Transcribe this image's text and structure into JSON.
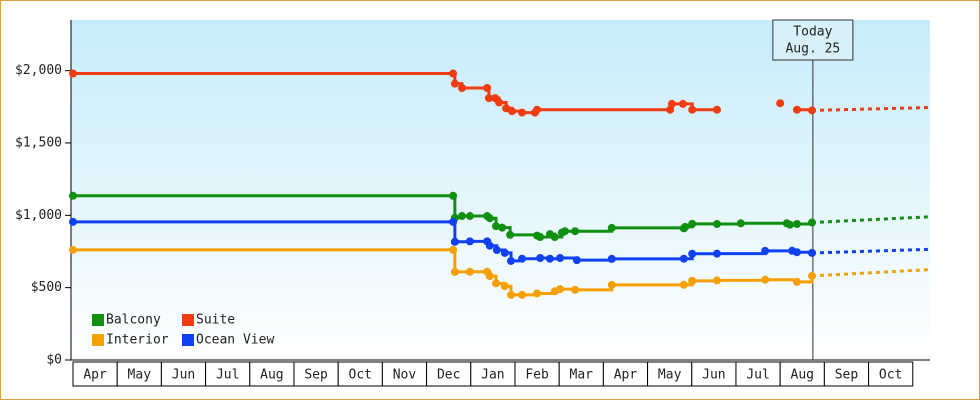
{
  "chart_data": {
    "type": "step-line",
    "xlim": [
      0,
      19.39
    ],
    "ylim": [
      0,
      2350
    ],
    "yticks": [
      {
        "value": 0,
        "label": "$0"
      },
      {
        "value": 500,
        "label": "$500"
      },
      {
        "value": 1000,
        "label": "$1,000"
      },
      {
        "value": 1500,
        "label": "$1,500"
      },
      {
        "value": 2000,
        "label": "$2,000"
      }
    ],
    "xticks": [
      {
        "value": 0.5,
        "label": "Apr"
      },
      {
        "value": 1.5,
        "label": "May"
      },
      {
        "value": 2.5,
        "label": "Jun"
      },
      {
        "value": 3.5,
        "label": "Jul"
      },
      {
        "value": 4.5,
        "label": "Aug"
      },
      {
        "value": 5.5,
        "label": "Sep"
      },
      {
        "value": 6.5,
        "label": "Oct"
      },
      {
        "value": 7.5,
        "label": "Nov"
      },
      {
        "value": 8.5,
        "label": "Dec"
      },
      {
        "value": 9.5,
        "label": "Jan"
      },
      {
        "value": 10.5,
        "label": "Feb"
      },
      {
        "value": 11.5,
        "label": "Mar"
      },
      {
        "value": 12.5,
        "label": "Apr"
      },
      {
        "value": 13.5,
        "label": "May"
      },
      {
        "value": 14.5,
        "label": "Jun"
      },
      {
        "value": 15.5,
        "label": "Jul"
      },
      {
        "value": 16.5,
        "label": "Aug"
      },
      {
        "value": 17.5,
        "label": "Sep"
      },
      {
        "value": 18.5,
        "label": "Oct"
      }
    ],
    "annotation": {
      "x": 16.74,
      "lines": [
        "Today",
        "Aug. 25"
      ]
    },
    "legend": "bottom-left",
    "series": [
      {
        "name": "Balcony",
        "color": "#109010",
        "x": [
          0,
          8.6,
          8.64,
          8.8,
          8.98,
          9.37,
          9.43,
          9.57,
          9.71,
          9.89,
          10.5,
          10.57,
          10.79,
          10.9,
          11.06,
          11.13,
          11.36,
          12.19,
          13.82,
          13.85,
          14.01,
          14.57,
          15.11,
          16.15,
          16.22,
          16.38,
          16.72
        ],
        "values": [
          1135,
          1135,
          983,
          995,
          995,
          995,
          980,
          925,
          915,
          865,
          860,
          850,
          870,
          850,
          880,
          890,
          890,
          913,
          910,
          920,
          941,
          940,
          945,
          945,
          935,
          940,
          950
        ],
        "forecast": {
          "x": [
            16.72,
            19.39
          ],
          "values": [
            950,
            990
          ]
        }
      },
      {
        "name": "Suite",
        "color": "#f03c10",
        "x": [
          0,
          8.6,
          8.64,
          8.8,
          9.37,
          9.41,
          9.55,
          9.64,
          9.8,
          9.93,
          10.16,
          10.45,
          10.5,
          13.51,
          13.55,
          13.8,
          14.01,
          14.57,
          15.5,
          16.0,
          16.2,
          16.38,
          16.72
        ],
        "values": [
          1980,
          1980,
          1910,
          1880,
          1880,
          1810,
          1810,
          1780,
          1740,
          1720,
          1710,
          1710,
          1730,
          1730,
          1770,
          1770,
          1730,
          1730,
          null,
          1775,
          null,
          1730,
          1725
        ],
        "forecast": {
          "x": [
            16.72,
            19.39
          ],
          "values": [
            1725,
            1745
          ]
        }
      },
      {
        "name": "Interior",
        "color": "#f5a000",
        "x": [
          0,
          8.6,
          8.64,
          8.98,
          9.37,
          9.43,
          9.57,
          9.77,
          9.91,
          10.16,
          10.5,
          10.9,
          11.02,
          11.36,
          12.19,
          13.82,
          14.01,
          14.57,
          15.66,
          16.38,
          16.72
        ],
        "values": [
          761,
          761,
          609,
          610,
          610,
          580,
          530,
          510,
          450,
          450,
          460,
          475,
          490,
          485,
          519,
          520,
          547,
          550,
          555,
          540,
          581
        ],
        "forecast": {
          "x": [
            16.72,
            19.39
          ],
          "values": [
            581,
            625
          ]
        }
      },
      {
        "name": "Ocean View",
        "color": "#1040f0",
        "x": [
          0,
          8.6,
          8.64,
          8.98,
          9.37,
          9.43,
          9.59,
          9.77,
          9.91,
          10.16,
          10.57,
          10.79,
          11.02,
          11.4,
          12.19,
          13.82,
          14.01,
          14.57,
          15.66,
          16.27,
          16.38,
          16.72
        ],
        "values": [
          955,
          955,
          817,
          820,
          820,
          790,
          760,
          740,
          685,
          700,
          705,
          700,
          705,
          690,
          699,
          700,
          734,
          735,
          754,
          755,
          745,
          740
        ],
        "forecast": {
          "x": [
            16.72,
            19.39
          ],
          "values": [
            740,
            765
          ]
        }
      }
    ]
  }
}
